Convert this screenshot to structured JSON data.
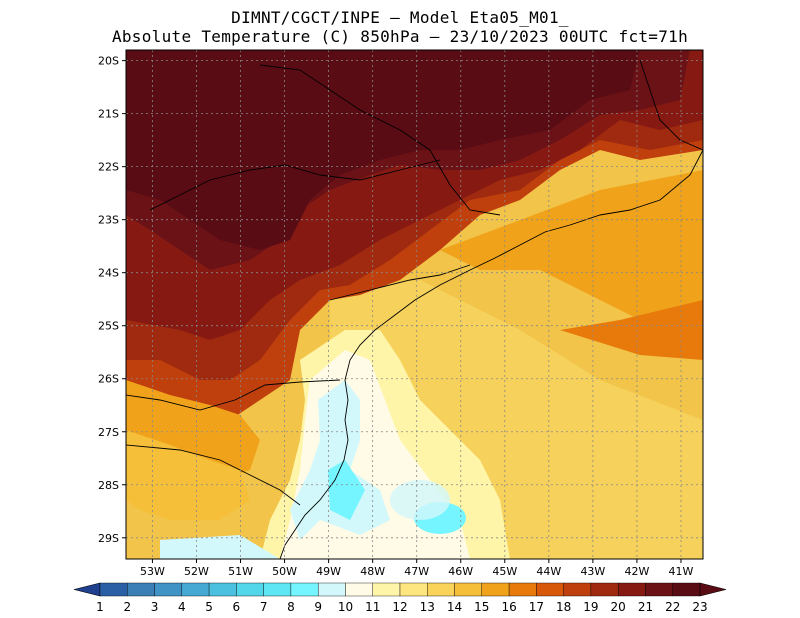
{
  "title": {
    "line1": "DIMNT/CGCT/INPE –  Model Eta05_M01_",
    "line2": "Absolute Temperature (C) 850hPa –  23/10/2023 00UTC fct=71h"
  },
  "map": {
    "lat_labels": [
      "20S",
      "21S",
      "22S",
      "23S",
      "24S",
      "25S",
      "26S",
      "27S",
      "28S",
      "29S"
    ],
    "lon_labels": [
      "53W",
      "52W",
      "51W",
      "50W",
      "49W",
      "48W",
      "47W",
      "46W",
      "45W",
      "44W",
      "43W",
      "42W",
      "41W"
    ],
    "lat_range": [
      -29.4,
      -19.8
    ],
    "lon_range": [
      -53.6,
      -40.5
    ]
  },
  "colorbar": {
    "labels": [
      "1",
      "2",
      "3",
      "4",
      "5",
      "6",
      "7",
      "8",
      "9",
      "10",
      "11",
      "12",
      "13",
      "14",
      "15",
      "16",
      "17",
      "18",
      "19",
      "20",
      "21",
      "22",
      "23"
    ],
    "colors": [
      "#1f3f8f",
      "#2a5fa5",
      "#3a7fb5",
      "#3f93c5",
      "#45a9d4",
      "#4bc1df",
      "#52d6ea",
      "#5fe6f5",
      "#75f5ff",
      "#d2f8fb",
      "#fffbe6",
      "#fff5a8",
      "#fde680",
      "#f9d35a",
      "#f5bf3a",
      "#f0a31a",
      "#e77a0a",
      "#d8580a",
      "#c0400d",
      "#a02a0f",
      "#861a13",
      "#6b1217",
      "#5a0c14"
    ]
  }
}
